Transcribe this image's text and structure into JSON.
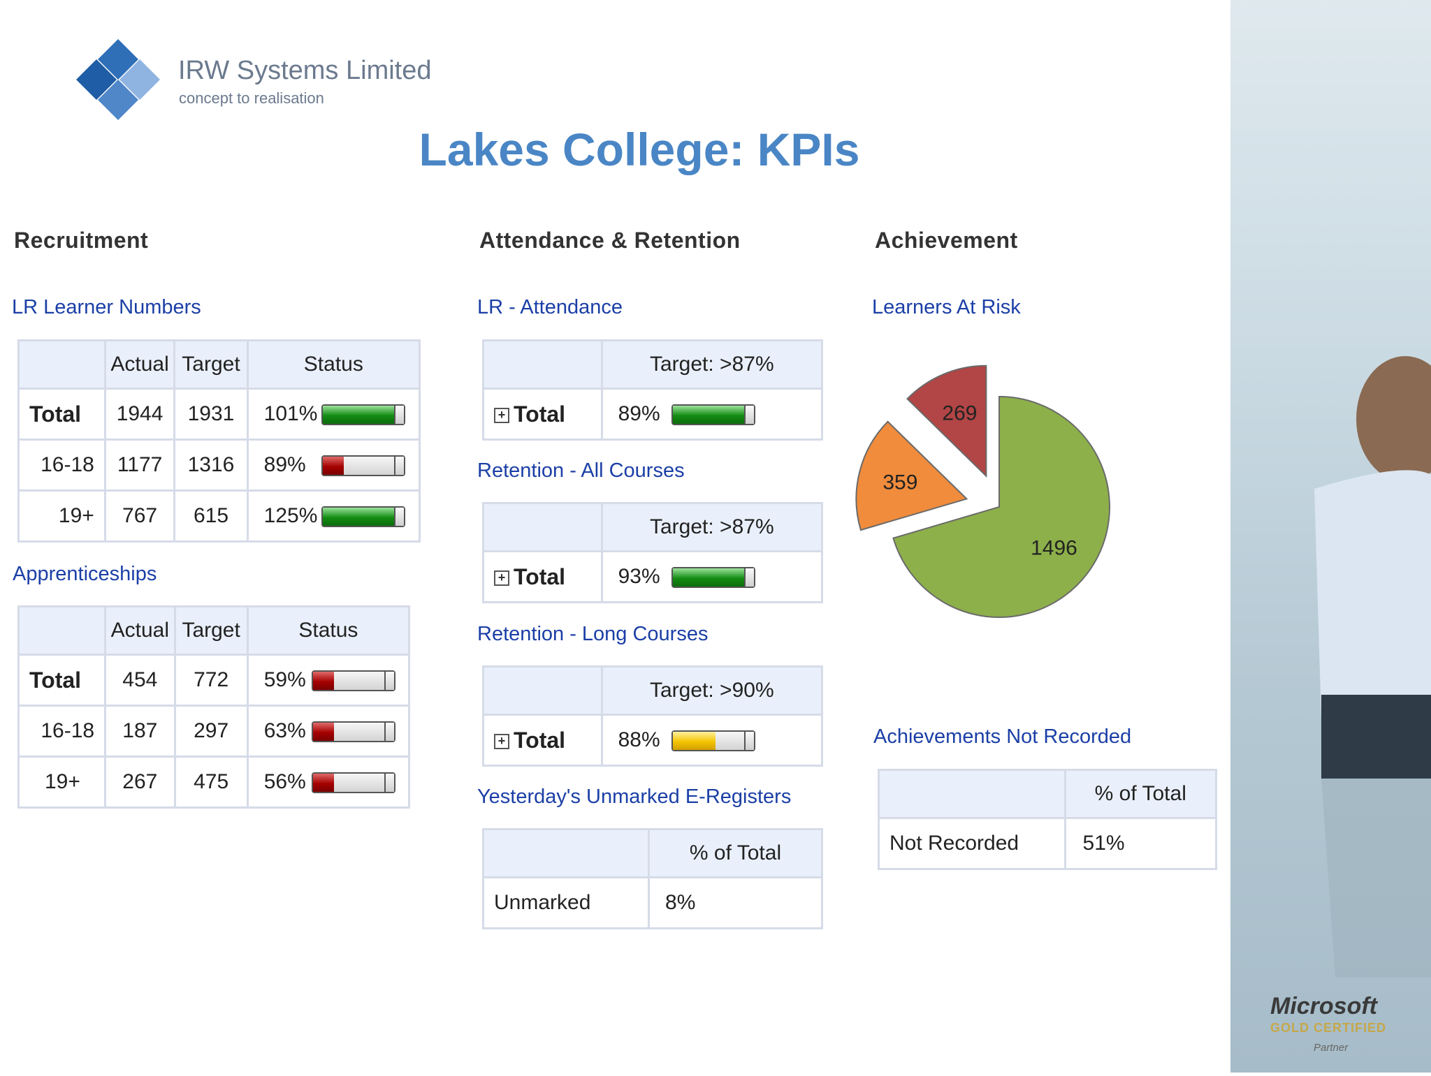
{
  "brand": {
    "name": "IRW Systems Limited",
    "tagline": "concept to realisation",
    "colors": {
      "title": "#4a86c5",
      "link": "#1b3fa6",
      "header_bg": "#eaf0fb"
    }
  },
  "page_title": "Lakes College: KPIs",
  "recruitment": {
    "heading": "Recruitment",
    "lr_learner_numbers": {
      "title": "LR Learner Numbers",
      "columns": [
        "Actual",
        "Target",
        "Status"
      ],
      "rows": [
        {
          "label": "Total",
          "actual": "1944",
          "target": "1931",
          "pct": "101%",
          "level": 1.0,
          "status": "green"
        },
        {
          "label": "16-18",
          "actual": "1177",
          "target": "1316",
          "pct": "89%",
          "level": 0.3,
          "status": "red"
        },
        {
          "label": "19+",
          "actual": "767",
          "target": "615",
          "pct": "125%",
          "level": 1.0,
          "status": "green"
        }
      ]
    },
    "apprenticeships": {
      "title": "Apprenticeships",
      "columns": [
        "Actual",
        "Target",
        "Status"
      ],
      "rows": [
        {
          "label": "Total",
          "actual": "454",
          "target": "772",
          "pct": "59%",
          "level": 0.3,
          "status": "red"
        },
        {
          "label": "16-18",
          "actual": "187",
          "target": "297",
          "pct": "63%",
          "level": 0.3,
          "status": "red"
        },
        {
          "label": "19+",
          "actual": "267",
          "target": "475",
          "pct": "56%",
          "level": 0.3,
          "status": "red"
        }
      ]
    }
  },
  "attendance": {
    "heading": "Attendance & Retention",
    "tables": [
      {
        "title": "LR - Attendance",
        "target_label": "Target: >87%",
        "row_label": "Total",
        "pct": "89%",
        "level": 1.0,
        "status": "green"
      },
      {
        "title": "Retention - All Courses",
        "target_label": "Target: >87%",
        "row_label": "Total",
        "pct": "93%",
        "level": 1.0,
        "status": "green"
      },
      {
        "title": "Retention - Long Courses",
        "target_label": "Target: >90%",
        "row_label": "Total",
        "pct": "88%",
        "level": 0.6,
        "status": "amber"
      }
    ],
    "unmarked": {
      "title": "Yesterday's Unmarked E-Registers",
      "column": "% of Total",
      "row_label": "Unmarked",
      "value": "8%"
    }
  },
  "achievement": {
    "heading": "Achievement",
    "learners_at_risk": "Learners At Risk",
    "not_recorded": {
      "title": "Achievements Not Recorded",
      "column": "% of Total",
      "row_label": "Not Recorded",
      "value": "51%"
    }
  },
  "chart_data": {
    "type": "pie",
    "title": "Learners At Risk",
    "values": [
      1496,
      359,
      269
    ],
    "labels": [
      "1496",
      "359",
      "269"
    ],
    "colors": [
      "#8db04a",
      "#f08c3c",
      "#b24545"
    ],
    "exploded": [
      false,
      true,
      true
    ]
  },
  "badge": {
    "brand": "Microsoft",
    "level": "GOLD CERTIFIED",
    "type": "Partner"
  }
}
